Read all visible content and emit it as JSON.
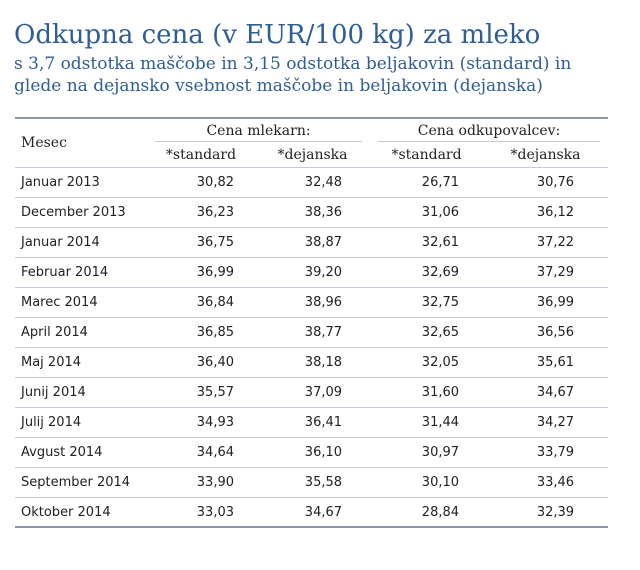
{
  "title": "Odkupna cena (v EUR/100 kg) za mleko",
  "subtitle_line1": "s 3,7 odstotka maščobe in 3,15 odstotka beljakovin (standard) in",
  "subtitle_line2": "glede na dejansko vsebnost maščobe in beljakovin (dejanska)",
  "table": {
    "row_header": "Mesec",
    "groups": [
      "Cena mlekarn:",
      "Cena odkupovalcev:"
    ],
    "subheaders": [
      "*standard",
      "*dejanska",
      "*standard",
      "*dejanska"
    ],
    "rows": [
      {
        "month": "Januar 2013",
        "values": [
          "30,82",
          "32,48",
          "26,71",
          "30,76"
        ]
      },
      {
        "month": "December 2013",
        "values": [
          "36,23",
          "38,36",
          "31,06",
          "36,12"
        ]
      },
      {
        "month": "Januar 2014",
        "values": [
          "36,75",
          "38,87",
          "32,61",
          "37,22"
        ]
      },
      {
        "month": "Februar 2014",
        "values": [
          "36,99",
          "39,20",
          "32,69",
          "37,29"
        ]
      },
      {
        "month": "Marec 2014",
        "values": [
          "36,84",
          "38,96",
          "32,75",
          "36,99"
        ]
      },
      {
        "month": "April 2014",
        "values": [
          "36,85",
          "38,77",
          "32,65",
          "36,56"
        ]
      },
      {
        "month": "Maj 2014",
        "values": [
          "36,40",
          "38,18",
          "32,05",
          "35,61"
        ]
      },
      {
        "month": "Junij 2014",
        "values": [
          "35,57",
          "37,09",
          "31,60",
          "34,67"
        ]
      },
      {
        "month": "Julij 2014",
        "values": [
          "34,93",
          "36,41",
          "31,44",
          "34,27"
        ]
      },
      {
        "month": "Avgust 2014",
        "values": [
          "34,64",
          "36,10",
          "30,97",
          "33,79"
        ]
      },
      {
        "month": "September 2014",
        "values": [
          "33,90",
          "35,58",
          "30,10",
          "33,46"
        ]
      },
      {
        "month": "Oktober 2014",
        "values": [
          "33,03",
          "34,67",
          "28,84",
          "32,39"
        ]
      }
    ]
  },
  "colors": {
    "title": "#2e5d98",
    "rule": "#8a97a6",
    "row_line": "#c4ccd6",
    "text": "#222222"
  }
}
